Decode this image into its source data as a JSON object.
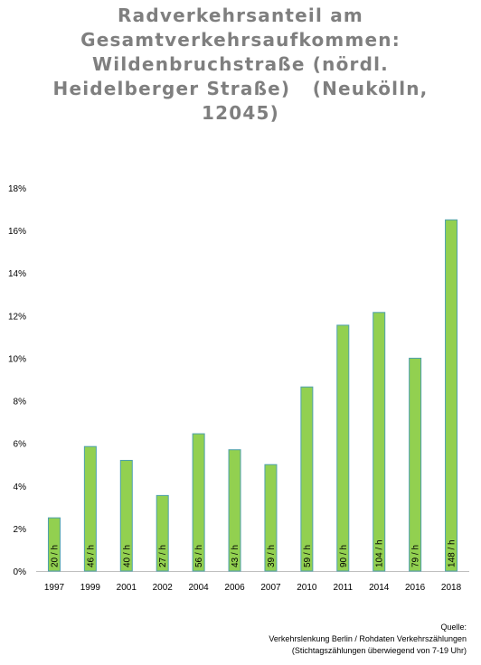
{
  "chart_data": {
    "type": "bar",
    "title": [
      "Radverkehrsanteil am",
      "Gesamtverkehrsaufkommen:",
      "Wildenbruchstraße (nördl.",
      "Heidelberger Straße)   (Neukölln,",
      "12045)"
    ],
    "categories": [
      "1997",
      "1999",
      "2001",
      "2002",
      "2004",
      "2006",
      "2007",
      "2010",
      "2011",
      "2014",
      "2016",
      "2018"
    ],
    "values": [
      2.5,
      5.85,
      5.2,
      3.55,
      6.45,
      5.7,
      5.0,
      8.65,
      11.55,
      12.15,
      10.0,
      16.5
    ],
    "bar_labels": [
      "20 / h",
      "46 / h",
      "40 / h",
      "27 / h",
      "56 / h",
      "43 / h",
      "39 / h",
      "59 / h",
      "90 / h",
      "104 / h",
      "79 / h",
      "148 / h"
    ],
    "yticks": [
      "0%",
      "2%",
      "4%",
      "6%",
      "8%",
      "10%",
      "12%",
      "14%",
      "16%",
      "18%"
    ],
    "ylim": [
      0,
      18
    ],
    "grid": false,
    "colors": {
      "bar": "#92d050",
      "bar_edge": "#4ea0ad",
      "text": "#7f7f7f"
    }
  },
  "source": {
    "line1": "Quelle:",
    "line2": "Verkehrslenkung Berlin / Rohdaten Verkehrszählungen",
    "line3": "(Stichtagszählungen überwiegend von 7-19 Uhr)"
  }
}
